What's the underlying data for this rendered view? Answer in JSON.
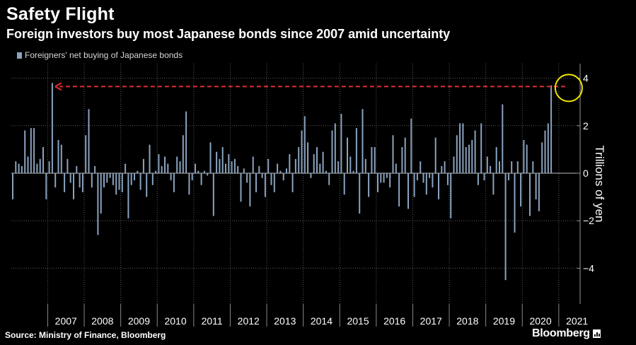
{
  "title": "Safety Flight",
  "subtitle": "Foreign investors buy most Japanese bonds since 2007 amid uncertainty",
  "legend_label": "Foreigners' net buying of Japanese bonds",
  "source": "Source: Ministry  of Finance, Bloomberg",
  "logo_text": "Bloomberg",
  "colors": {
    "background": "#000000",
    "bar": "#8aa3bf",
    "grid": "#5a5a5a",
    "arrow": "#e03030",
    "circle": "#f2e600"
  },
  "chart_data": {
    "type": "bar",
    "ylabel": "Trillions of yen",
    "ylim": [
      -5.5,
      4.5
    ],
    "yticks": [
      -4,
      -2,
      0,
      2,
      4
    ],
    "x_labels": [
      "2007",
      "2008",
      "2009",
      "2010",
      "2011",
      "2012",
      "2013",
      "2014",
      "2015",
      "2016",
      "2017",
      "2018",
      "2019",
      "2020",
      "2021"
    ],
    "series": [
      {
        "name": "Foreigners' net buying of Japanese bonds",
        "start": "2006-01",
        "frequency": "monthly",
        "values": [
          -1.1,
          0.5,
          0.4,
          0.3,
          1.8,
          0.7,
          1.9,
          1.9,
          0.4,
          0.6,
          1.1,
          -1.1,
          0.5,
          3.8,
          -0.6,
          1.4,
          1.2,
          -0.8,
          0.6,
          -0.4,
          -1.1,
          0.3,
          -0.6,
          -0.8,
          1.6,
          2.7,
          -0.6,
          0.3,
          -2.6,
          -1.7,
          -0.6,
          -0.4,
          -0.2,
          -0.5,
          -0.9,
          -0.7,
          -0.8,
          0.4,
          -1.9,
          -0.5,
          -0.3,
          0.1,
          -0.7,
          0.6,
          -1.0,
          1.2,
          -0.5,
          0.1,
          0.8,
          0.3,
          0.7,
          0.4,
          -0.3,
          -0.8,
          0.7,
          0.5,
          1.6,
          2.6,
          -0.9,
          -0.3,
          0.4,
          0.1,
          -0.5,
          0.1,
          -0.1,
          1.3,
          -1.8,
          0.9,
          0.6,
          1.1,
          0.4,
          0.8,
          0.5,
          0.6,
          0.3,
          -1.2,
          0.2,
          -0.4,
          -1.4,
          0.7,
          -0.8,
          0.3,
          -0.2,
          -1.0,
          0.6,
          -0.5,
          -0.8,
          0.4,
          0.1,
          -0.3,
          0.2,
          0.8,
          -0.8,
          0.6,
          1.1,
          1.8,
          2.4,
          1.3,
          -0.2,
          0.8,
          1.1,
          0.4,
          0.9,
          0.1,
          -0.5,
          1.8,
          2.1,
          0.5,
          2.5,
          -0.9,
          1.5,
          0.7,
          0.1,
          1.9,
          -1.7,
          2.7,
          0.6,
          -1.0,
          1.1,
          1.1,
          -0.8,
          -0.4,
          -0.4,
          -0.2,
          -0.6,
          1.6,
          0.4,
          -1.4,
          1.1,
          1.5,
          -1.5,
          2.3,
          -1.0,
          -0.3,
          0.5,
          -0.4,
          -0.9,
          -0.2,
          -0.6,
          1.5,
          -1.1,
          0.3,
          0.5,
          -0.5,
          -1.9,
          0.7,
          1.6,
          2.1,
          2.1,
          1.1,
          1.2,
          1.4,
          1.8,
          -0.5,
          2.1,
          -0.3,
          0.7,
          0.3,
          -0.9,
          1.1,
          0.5,
          2.9,
          -4.5,
          -0.3,
          0.5,
          -2.5,
          0.5,
          -1.4,
          1.4,
          1.2,
          -1.8,
          0.5,
          -1.1,
          -1.6,
          1.3,
          1.8,
          2.1,
          3.7
        ]
      }
    ],
    "annotations": [
      {
        "type": "dashed-arrow",
        "from_date": "2021-04",
        "to_date": "2007-02",
        "y": 3.65
      },
      {
        "type": "circle",
        "date": "2021-04",
        "y": 3.65
      }
    ]
  }
}
